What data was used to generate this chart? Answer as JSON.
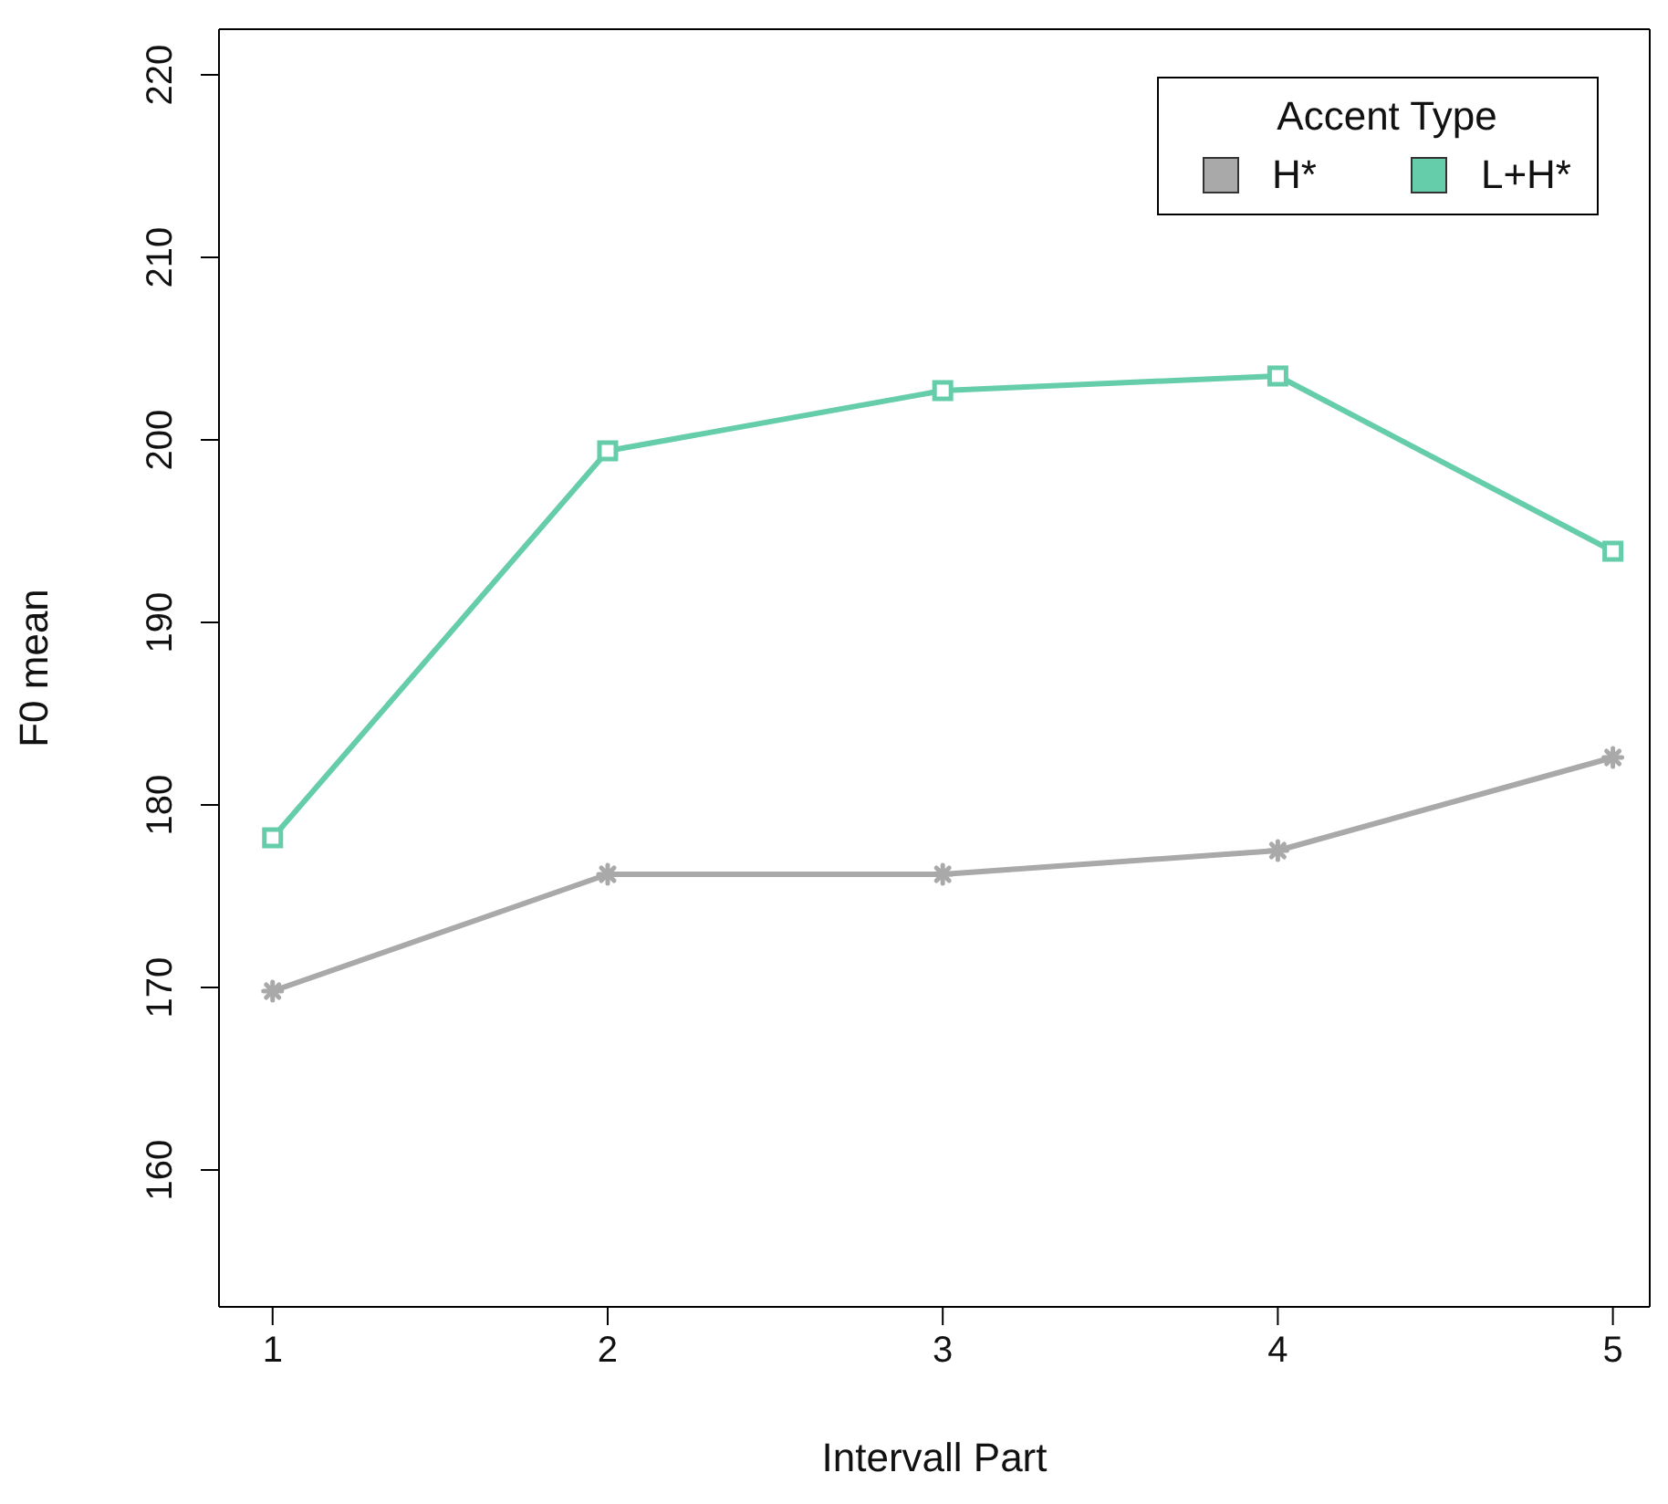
{
  "chart_data": {
    "type": "line",
    "xlabel": "Intervall Part",
    "ylabel": "F0 mean",
    "legend_title": "Accent Type",
    "x": [
      1,
      2,
      3,
      4,
      5
    ],
    "series": [
      {
        "name": "H*",
        "color": "#a9a9a9",
        "values": [
          169.8,
          176.2,
          176.2,
          177.5,
          182.6
        ],
        "marker": "cross"
      },
      {
        "name": "L+H*",
        "color": "#66cdaa",
        "values": [
          178.2,
          199.4,
          202.7,
          203.5,
          193.9
        ],
        "marker": "square"
      }
    ],
    "xlim": [
      0.84,
      5.11
    ],
    "ylim": [
      152.5,
      222.5
    ],
    "xticks": [
      1,
      2,
      3,
      4,
      5
    ],
    "yticks": [
      160,
      170,
      180,
      190,
      200,
      210,
      220
    ],
    "legend": "top right",
    "line_style": "solid"
  }
}
